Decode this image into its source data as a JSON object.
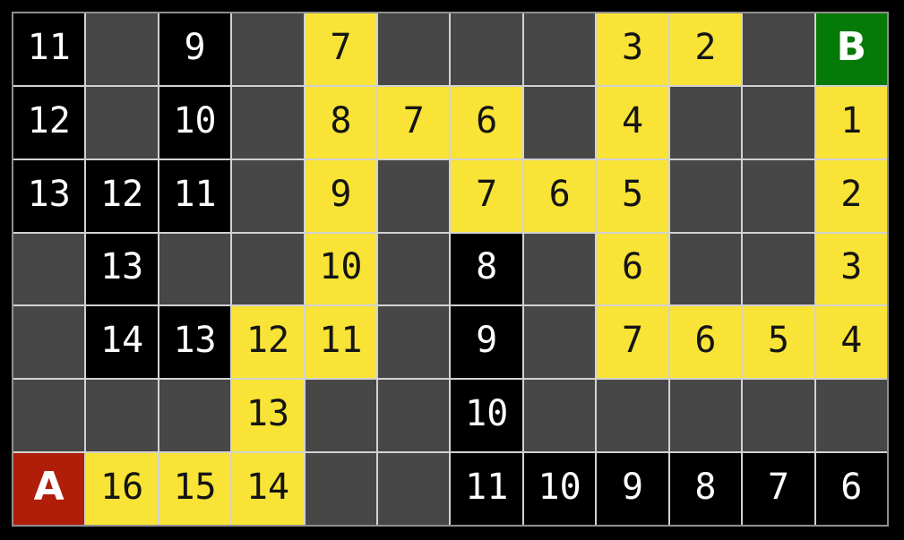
{
  "board": {
    "rows": 7,
    "cols": 12,
    "start_label": "A",
    "goal_label": "B",
    "cells": [
      [
        {
          "label": "11",
          "type": "dark"
        },
        {
          "label": "",
          "type": "empty"
        },
        {
          "label": "9",
          "type": "dark"
        },
        {
          "label": "",
          "type": "empty"
        },
        {
          "label": "7",
          "type": "path"
        },
        {
          "label": "",
          "type": "empty"
        },
        {
          "label": "",
          "type": "empty"
        },
        {
          "label": "",
          "type": "empty"
        },
        {
          "label": "3",
          "type": "path"
        },
        {
          "label": "2",
          "type": "path"
        },
        {
          "label": "",
          "type": "empty"
        },
        {
          "label": "B",
          "type": "goal"
        }
      ],
      [
        {
          "label": "12",
          "type": "dark"
        },
        {
          "label": "",
          "type": "empty"
        },
        {
          "label": "10",
          "type": "dark"
        },
        {
          "label": "",
          "type": "empty"
        },
        {
          "label": "8",
          "type": "path"
        },
        {
          "label": "7",
          "type": "path"
        },
        {
          "label": "6",
          "type": "path"
        },
        {
          "label": "",
          "type": "empty"
        },
        {
          "label": "4",
          "type": "path"
        },
        {
          "label": "",
          "type": "empty"
        },
        {
          "label": "",
          "type": "empty"
        },
        {
          "label": "1",
          "type": "path"
        }
      ],
      [
        {
          "label": "13",
          "type": "dark"
        },
        {
          "label": "12",
          "type": "dark"
        },
        {
          "label": "11",
          "type": "dark"
        },
        {
          "label": "",
          "type": "empty"
        },
        {
          "label": "9",
          "type": "path"
        },
        {
          "label": "",
          "type": "empty"
        },
        {
          "label": "7",
          "type": "path"
        },
        {
          "label": "6",
          "type": "path"
        },
        {
          "label": "5",
          "type": "path"
        },
        {
          "label": "",
          "type": "empty"
        },
        {
          "label": "",
          "type": "empty"
        },
        {
          "label": "2",
          "type": "path"
        }
      ],
      [
        {
          "label": "",
          "type": "empty"
        },
        {
          "label": "13",
          "type": "dark"
        },
        {
          "label": "",
          "type": "empty"
        },
        {
          "label": "",
          "type": "empty"
        },
        {
          "label": "10",
          "type": "path"
        },
        {
          "label": "",
          "type": "empty"
        },
        {
          "label": "8",
          "type": "dark"
        },
        {
          "label": "",
          "type": "empty"
        },
        {
          "label": "6",
          "type": "path"
        },
        {
          "label": "",
          "type": "empty"
        },
        {
          "label": "",
          "type": "empty"
        },
        {
          "label": "3",
          "type": "path"
        }
      ],
      [
        {
          "label": "",
          "type": "empty"
        },
        {
          "label": "14",
          "type": "dark"
        },
        {
          "label": "13",
          "type": "dark"
        },
        {
          "label": "12",
          "type": "path"
        },
        {
          "label": "11",
          "type": "path"
        },
        {
          "label": "",
          "type": "empty"
        },
        {
          "label": "9",
          "type": "dark"
        },
        {
          "label": "",
          "type": "empty"
        },
        {
          "label": "7",
          "type": "path"
        },
        {
          "label": "6",
          "type": "path"
        },
        {
          "label": "5",
          "type": "path"
        },
        {
          "label": "4",
          "type": "path"
        }
      ],
      [
        {
          "label": "",
          "type": "empty"
        },
        {
          "label": "",
          "type": "empty"
        },
        {
          "label": "",
          "type": "empty"
        },
        {
          "label": "13",
          "type": "path"
        },
        {
          "label": "",
          "type": "empty"
        },
        {
          "label": "",
          "type": "empty"
        },
        {
          "label": "10",
          "type": "dark"
        },
        {
          "label": "",
          "type": "empty"
        },
        {
          "label": "",
          "type": "empty"
        },
        {
          "label": "",
          "type": "empty"
        },
        {
          "label": "",
          "type": "empty"
        },
        {
          "label": "",
          "type": "empty"
        }
      ],
      [
        {
          "label": "A",
          "type": "start"
        },
        {
          "label": "16",
          "type": "path"
        },
        {
          "label": "15",
          "type": "path"
        },
        {
          "label": "14",
          "type": "path"
        },
        {
          "label": "",
          "type": "empty"
        },
        {
          "label": "",
          "type": "empty"
        },
        {
          "label": "11",
          "type": "dark"
        },
        {
          "label": "10",
          "type": "dark"
        },
        {
          "label": "9",
          "type": "dark"
        },
        {
          "label": "8",
          "type": "dark"
        },
        {
          "label": "7",
          "type": "dark"
        },
        {
          "label": "6",
          "type": "dark"
        }
      ]
    ]
  },
  "colors": {
    "background": "#000000",
    "empty_cell": "#474747",
    "dark_cell": "#000000",
    "path_cell": "#f8e336",
    "start_cell": "#b01e0a",
    "goal_cell": "#067a06",
    "grid_line": "#d2d2d2",
    "grid_outer_line": "#8f8f8f",
    "dark_cell_text": "#ffffff",
    "path_cell_text": "#141414"
  }
}
